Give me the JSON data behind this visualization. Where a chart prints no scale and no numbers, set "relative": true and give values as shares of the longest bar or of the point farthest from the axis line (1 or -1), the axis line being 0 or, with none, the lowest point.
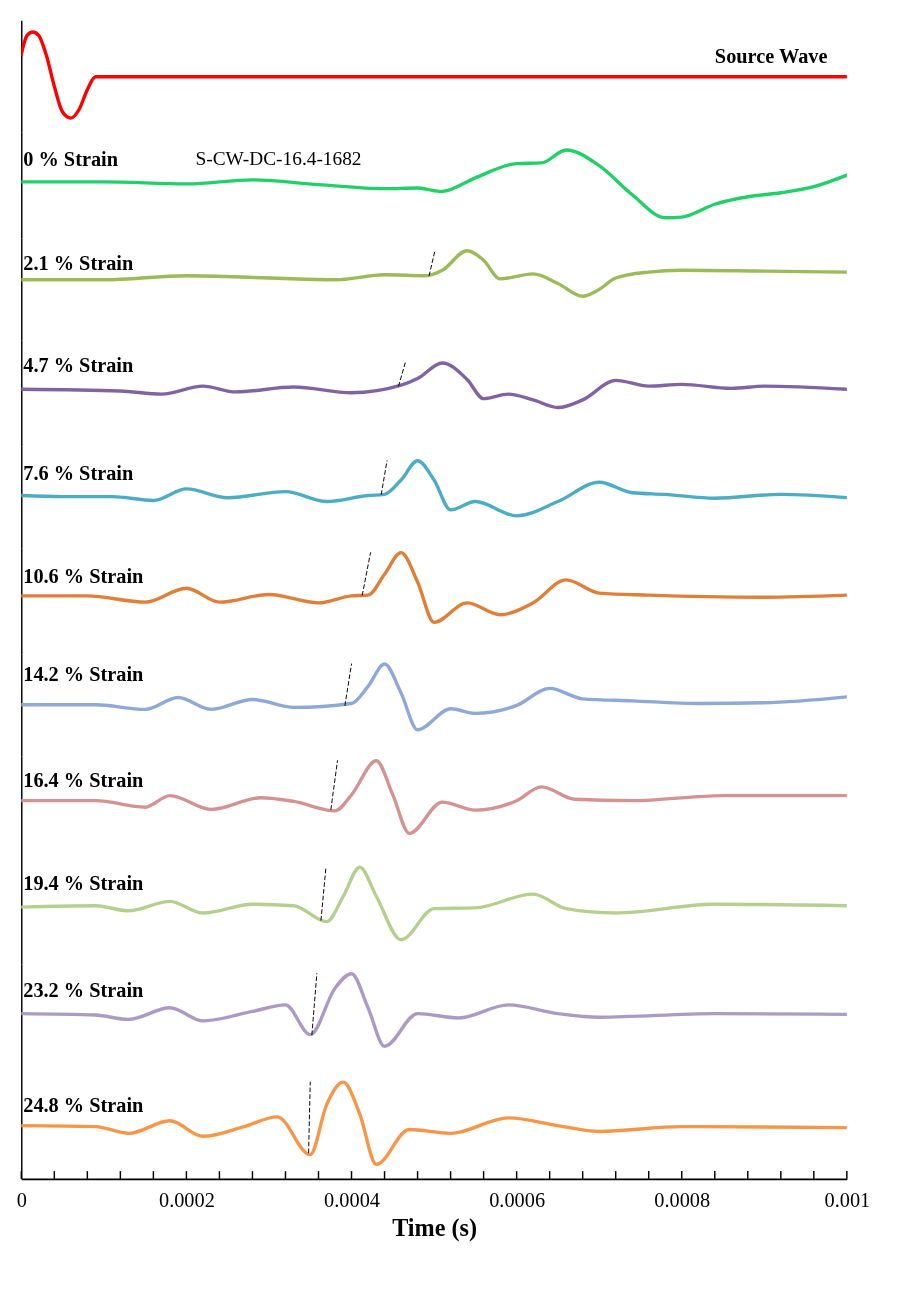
{
  "chart_data": [
    {
      "type": "line",
      "relative": true,
      "xlim": [
        0,
        0.001
      ],
      "tick_labels": false,
      "series": [
        {
          "name": "Source Wave",
          "color": "#ff0000",
          "x": [
            0,
            7e-06,
            1.4e-05,
            2.1e-05,
            3e-05,
            4e-05,
            5e-05,
            6e-05,
            7e-05,
            8e-05,
            9e-05,
            0.0001,
            0.001
          ],
          "values": [
            0.74,
            0.96,
            1,
            0.96,
            0.74,
            0.37,
            0.07,
            0,
            0.1,
            0.33,
            0.48,
            0.48,
            0.48
          ]
        }
      ]
    },
    {
      "type": "line",
      "relative": true,
      "xlim": [
        0,
        0.001
      ],
      "tick_labels": false,
      "annotations": [
        "S-CW-DC-16.4-1682"
      ],
      "series": [
        {
          "name": "0 % Strain",
          "color": "#22d06a",
          "x": [
            0,
            0.0001,
            0.0002,
            0.00028,
            0.00036,
            0.00044,
            0.00048,
            0.0005,
            0.00051,
            0.00055,
            0.0006,
            0.00063,
            0.00066,
            0.0007,
            0.00074,
            0.00078,
            0.0008,
            0.00084,
            0.00088,
            0.00092,
            0.00096,
            0.001
          ],
          "values": [
            0.53,
            0.53,
            0.5,
            0.56,
            0.49,
            0.43,
            0.44,
            0.4,
            0.39,
            0.59,
            0.8,
            0.81,
            1,
            0.77,
            0.34,
            0,
            0.01,
            0.2,
            0.31,
            0.37,
            0.46,
            0.63
          ]
        }
      ]
    },
    {
      "type": "line",
      "relative": true,
      "xlim": [
        0,
        0.001
      ],
      "tick_labels": false,
      "series": [
        {
          "name": "2.1 % Strain",
          "color": "#9bbb59",
          "x": [
            0,
            0.0001,
            0.0002,
            0.0003,
            0.00038,
            0.00044,
            0.00049,
            0.00051,
            0.00054,
            0.00056,
            0.00058,
            0.00062,
            0.00065,
            0.00068,
            0.0007,
            0.00072,
            0.00076,
            0.0008,
            0.0009,
            0.001
          ],
          "values": [
            0.36,
            0.36,
            0.45,
            0.4,
            0.36,
            0.47,
            0.45,
            0.57,
            1,
            0.79,
            0.38,
            0.49,
            0.28,
            0,
            0.15,
            0.4,
            0.53,
            0.57,
            0.55,
            0.53
          ]
        },
        {
          "type": "line",
          "line_style": "dashed",
          "color": "#000000",
          "x": [
            0.000494,
            0.000501
          ],
          "values": [
            0.45,
            1
          ]
        }
      ]
    },
    {
      "type": "line",
      "relative": true,
      "xlim": [
        0,
        0.001
      ],
      "tick_labels": false,
      "series": [
        {
          "name": "4.7 % Strain",
          "color": "#8064a2",
          "x": [
            0,
            0.00012,
            0.00017,
            0.00022,
            0.00026,
            0.00033,
            0.0004,
            0.00046,
            0.00048,
            0.00051,
            0.00054,
            0.00056,
            0.00059,
            0.00062,
            0.00065,
            0.00068,
            0.00072,
            0.00076,
            0.0008,
            0.00086,
            0.0009,
            0.001
          ],
          "values": [
            0.41,
            0.37,
            0.3,
            0.48,
            0.35,
            0.46,
            0.33,
            0.5,
            0.65,
            1,
            0.63,
            0.2,
            0.3,
            0.17,
            0,
            0.17,
            0.61,
            0.48,
            0.52,
            0.43,
            0.48,
            0.41
          ]
        },
        {
          "type": "line",
          "line_style": "dashed",
          "color": "#000000",
          "x": [
            0.000457,
            0.000465
          ],
          "values": [
            0.48,
            1
          ]
        }
      ]
    },
    {
      "type": "line",
      "relative": true,
      "xlim": [
        0,
        0.001
      ],
      "tick_labels": false,
      "series": [
        {
          "name": "7.6 % Strain",
          "color": "#4bacc6",
          "x": [
            0,
            5e-05,
            0.00011,
            0.00016,
            0.0002,
            0.00025,
            0.00032,
            0.00037,
            0.00042,
            0.00044,
            0.00046,
            0.00048,
            0.0005,
            0.00052,
            0.00055,
            0.0006,
            0.00065,
            0.0007,
            0.00074,
            0.00078,
            0.00084,
            0.00092,
            0.001
          ],
          "values": [
            0.37,
            0.35,
            0.35,
            0.28,
            0.49,
            0.33,
            0.44,
            0.26,
            0.37,
            0.39,
            0.65,
            1,
            0.65,
            0.11,
            0.26,
            0,
            0.26,
            0.61,
            0.42,
            0.39,
            0.32,
            0.39,
            0.33
          ]
        },
        {
          "type": "line",
          "line_style": "dashed",
          "color": "#000000",
          "x": [
            0.000436,
            0.000443
          ],
          "values": [
            0.39,
            1
          ]
        }
      ]
    },
    {
      "type": "line",
      "relative": true,
      "xlim": [
        0,
        0.001
      ],
      "tick_labels": false,
      "series": [
        {
          "name": "10.6 % Strain",
          "color": "#e07f37",
          "x": [
            0,
            8e-05,
            0.00015,
            0.0002,
            0.00024,
            0.0003,
            0.00036,
            0.0004,
            0.00042,
            0.00044,
            0.00046,
            0.00048,
            0.0005,
            0.00054,
            0.00058,
            0.00062,
            0.00066,
            0.0007,
            0.00076,
            0.0009,
            0.001
          ],
          "values": [
            0.38,
            0.38,
            0.29,
            0.49,
            0.29,
            0.4,
            0.28,
            0.38,
            0.39,
            0.69,
            1,
            0.58,
            0,
            0.28,
            0.11,
            0.28,
            0.61,
            0.42,
            0.39,
            0.36,
            0.39
          ]
        },
        {
          "type": "line",
          "line_style": "dashed",
          "color": "#000000",
          "x": [
            0.000413,
            0.000423
          ],
          "values": [
            0.39,
            1
          ]
        }
      ]
    },
    {
      "type": "line",
      "relative": true,
      "xlim": [
        0,
        0.001
      ],
      "tick_labels": false,
      "series": [
        {
          "name": "14.2 % Strain",
          "color": "#8ea9d8",
          "x": [
            0,
            9e-05,
            0.00015,
            0.00019,
            0.00023,
            0.00028,
            0.00033,
            0.0004,
            0.00042,
            0.00044,
            0.00046,
            0.00048,
            0.00052,
            0.00055,
            0.0006,
            0.00064,
            0.00068,
            0.00074,
            0.00082,
            0.0009,
            0.001
          ],
          "values": [
            0.38,
            0.38,
            0.31,
            0.49,
            0.31,
            0.46,
            0.34,
            0.4,
            0.66,
            1,
            0.56,
            0,
            0.32,
            0.25,
            0.37,
            0.63,
            0.47,
            0.44,
            0.4,
            0.41,
            0.5
          ]
        },
        {
          "type": "line",
          "line_style": "dashed",
          "color": "#000000",
          "x": [
            0.000392,
            0.0004
          ],
          "values": [
            0.37,
            1
          ]
        }
      ]
    },
    {
      "type": "line",
      "relative": true,
      "xlim": [
        0,
        0.001
      ],
      "tick_labels": false,
      "series": [
        {
          "name": "16.4 % Strain",
          "color": "#d49292",
          "x": [
            0,
            9e-05,
            0.00015,
            0.00018,
            0.00023,
            0.00029,
            0.00033,
            0.00038,
            0.0004,
            0.00043,
            0.00045,
            0.00047,
            0.00051,
            0.00055,
            0.0006,
            0.00063,
            0.00067,
            0.00074,
            0.00085,
            0.001
          ],
          "values": [
            0.45,
            0.45,
            0.36,
            0.52,
            0.33,
            0.49,
            0.44,
            0.31,
            0.53,
            1,
            0.53,
            0,
            0.43,
            0.32,
            0.45,
            0.64,
            0.47,
            0.45,
            0.52,
            0.52
          ]
        },
        {
          "type": "line",
          "line_style": "dashed",
          "color": "#000000",
          "x": [
            0.000375,
            0.000383
          ],
          "values": [
            0.33,
            1
          ]
        }
      ]
    },
    {
      "type": "line",
      "relative": true,
      "xlim": [
        0,
        0.001
      ],
      "tick_labels": false,
      "series": [
        {
          "name": "19.4 % Strain",
          "color": "#b5d08e",
          "x": [
            0,
            9e-05,
            0.00013,
            0.00018,
            0.00022,
            0.00028,
            0.00033,
            0.00037,
            0.00039,
            0.00041,
            0.00043,
            0.00046,
            0.0005,
            0.00055,
            0.00062,
            0.00066,
            0.00072,
            0.00084,
            0.001
          ],
          "values": [
            0.45,
            0.47,
            0.4,
            0.53,
            0.37,
            0.49,
            0.47,
            0.25,
            0.6,
            1,
            0.6,
            0,
            0.43,
            0.44,
            0.63,
            0.43,
            0.37,
            0.49,
            0.47
          ]
        },
        {
          "type": "line",
          "line_style": "dashed",
          "color": "#000000",
          "x": [
            0.000363,
            0.000369
          ],
          "values": [
            0.27,
            1
          ]
        }
      ]
    },
    {
      "type": "line",
      "relative": true,
      "xlim": [
        0,
        0.001
      ],
      "tick_labels": false,
      "series": [
        {
          "name": "23.2 % Strain",
          "color": "#ab9bc4",
          "x": [
            0,
            9e-05,
            0.00013,
            0.00018,
            0.00022,
            0.00028,
            0.00032,
            0.00035,
            0.00038,
            0.0004,
            0.00042,
            0.00044,
            0.00048,
            0.00053,
            0.00059,
            0.00065,
            0.0007,
            0.00084,
            0.001
          ],
          "values": [
            0.45,
            0.43,
            0.37,
            0.53,
            0.35,
            0.48,
            0.57,
            0.16,
            0.8,
            1,
            0.53,
            0,
            0.45,
            0.39,
            0.57,
            0.45,
            0.4,
            0.45,
            0.44
          ]
        },
        {
          "type": "line",
          "line_style": "dashed",
          "color": "#000000",
          "x": [
            0.000352,
            0.000358
          ],
          "values": [
            0.16,
            1
          ]
        }
      ]
    },
    {
      "type": "line",
      "relative": true,
      "xlim": [
        0,
        0.001
      ],
      "tick_labels": "x",
      "xlabel": "Time (s)",
      "xticks": [
        0,
        {
          "value": 4e-05,
          "label": null
        },
        {
          "value": 8e-05,
          "label": null
        },
        {
          "value": 0.00012,
          "label": null
        },
        {
          "value": 0.00016,
          "label": null
        },
        0.0002,
        {
          "value": 0.00024,
          "label": null
        },
        {
          "value": 0.00028,
          "label": null
        },
        {
          "value": 0.00032,
          "label": null
        },
        {
          "value": 0.00036,
          "label": null
        },
        0.0004,
        {
          "value": 0.00044,
          "label": null
        },
        {
          "value": 0.00048,
          "label": null
        },
        {
          "value": 0.00052,
          "label": null
        },
        {
          "value": 0.00056,
          "label": null
        },
        0.0006,
        {
          "value": 0.00064,
          "label": null
        },
        {
          "value": 0.00068,
          "label": null
        },
        {
          "value": 0.00072,
          "label": null
        },
        {
          "value": 0.00076,
          "label": null
        },
        0.0008,
        {
          "value": 0.00084,
          "label": null
        },
        {
          "value": 0.00088,
          "label": null
        },
        {
          "value": 0.00092,
          "label": null
        },
        {
          "value": 0.00096,
          "label": null
        },
        0.001
      ],
      "series": [
        {
          "name": "24.8 % Strain",
          "color": "#f79646",
          "x": [
            0,
            9e-05,
            0.00013,
            0.00018,
            0.00022,
            0.00027,
            0.00031,
            0.00035,
            0.00037,
            0.00039,
            0.00041,
            0.00043,
            0.00047,
            0.00052,
            0.00059,
            0.00065,
            0.0007,
            0.0008,
            0.001
          ],
          "values": [
            0.55,
            0.54,
            0.47,
            0.6,
            0.44,
            0.54,
            0.64,
            0.25,
            0.77,
            1,
            0.67,
            0.15,
            0.51,
            0.47,
            0.63,
            0.55,
            0.49,
            0.54,
            0.53
          ]
        },
        {
          "type": "line",
          "line_style": "dashed",
          "color": "#000000",
          "x": [
            0.000348,
            0.00035
          ],
          "values": [
            0.27,
            1
          ]
        }
      ]
    }
  ]
}
